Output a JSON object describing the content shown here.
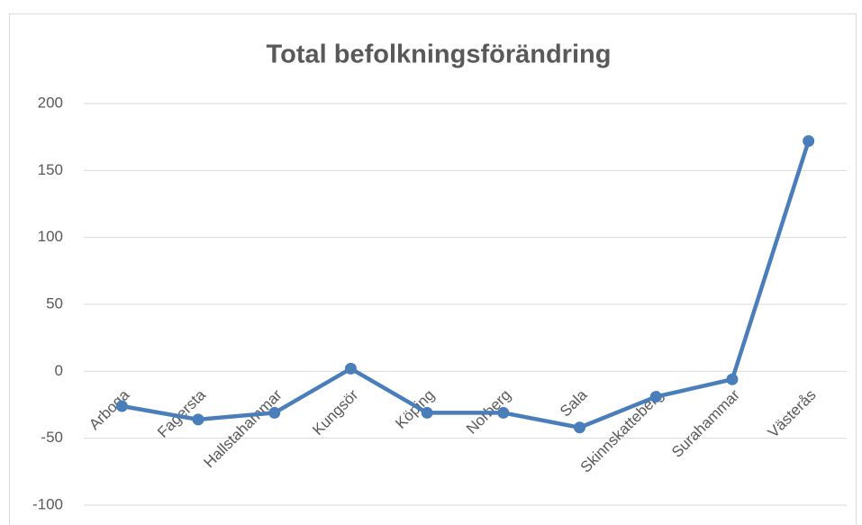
{
  "chart_data": {
    "type": "line",
    "title": "Total befolkningsförändring",
    "categories": [
      "Arboga",
      "Fagersta",
      "Hallstahammar",
      "Kungsör",
      "Köping",
      "Norberg",
      "Sala",
      "Skinnskatteberg",
      "Surahammar",
      "Västerås"
    ],
    "values": [
      -26,
      -36,
      -31,
      2,
      -31,
      -31,
      -42,
      -19,
      -6,
      172
    ],
    "color": "#4a7ebb",
    "ylim": [
      -100,
      200
    ],
    "yticks": [
      -100,
      -50,
      0,
      50,
      100,
      150,
      200
    ],
    "grid": true
  }
}
